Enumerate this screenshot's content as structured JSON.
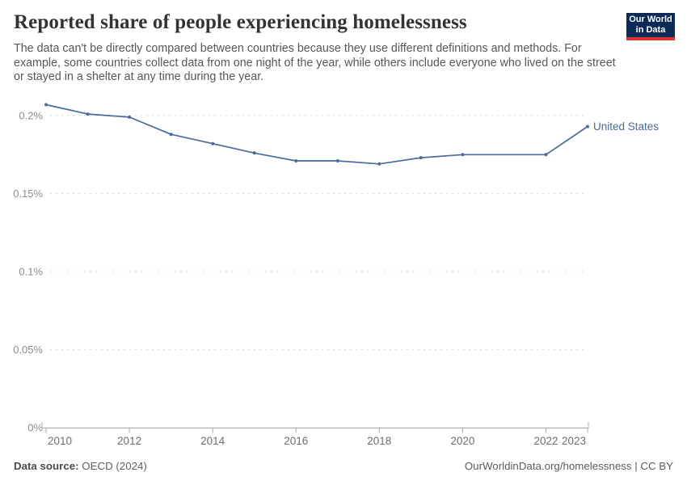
{
  "header": {
    "title": "Reported share of people experiencing homelessness",
    "subtitle": "The data can't be directly compared between countries because they use different definitions and methods. For example, some countries collect data from one night of the year, while others include everyone who lived on the street or stayed in a shelter at any time during the year.",
    "logo": {
      "line1": "Our World",
      "line2": "in Data",
      "bg_color": "#0b2b56",
      "accent_color": "#dc352f"
    }
  },
  "chart_data": {
    "type": "line",
    "title": "Reported share of people experiencing homelessness",
    "x_ticks": [
      "2010",
      "2012",
      "2014",
      "2016",
      "2018",
      "2020",
      "2022",
      "2023"
    ],
    "y_ticks": [
      {
        "value": 0,
        "label": "0%"
      },
      {
        "value": 0.05,
        "label": "0.05%"
      },
      {
        "value": 0.1,
        "label": "0.1%"
      },
      {
        "value": 0.15,
        "label": "0.15%"
      },
      {
        "value": 0.2,
        "label": "0.2%"
      }
    ],
    "x_range": [
      2010,
      2023
    ],
    "y_range_percent": [
      0,
      0.2
    ],
    "unit": "%",
    "grid": "dashed-horizontal",
    "legend_position": "end-of-line",
    "colors": {
      "axis": "#a8a8a8",
      "grid": "#d6d6d6",
      "y_tick_label": "#8c8c8c",
      "x_tick_label": "#6e6e6e"
    },
    "series": [
      {
        "name": "United States",
        "color": "#4c6a9c",
        "points": [
          {
            "year": 2010,
            "value": 0.207
          },
          {
            "year": 2011,
            "value": 0.201
          },
          {
            "year": 2012,
            "value": 0.199
          },
          {
            "year": 2013,
            "value": 0.188
          },
          {
            "year": 2014,
            "value": 0.182
          },
          {
            "year": 2015,
            "value": 0.176
          },
          {
            "year": 2016,
            "value": 0.171
          },
          {
            "year": 2017,
            "value": 0.171
          },
          {
            "year": 2018,
            "value": 0.169
          },
          {
            "year": 2019,
            "value": 0.173
          },
          {
            "year": 2020,
            "value": 0.175
          },
          {
            "year": 2022,
            "value": 0.175
          },
          {
            "year": 2023,
            "value": 0.193
          }
        ]
      }
    ]
  },
  "footer": {
    "source_label": "Data source:",
    "source_value": "OECD (2024)",
    "rights": "OurWorldinData.org/homelessness | CC BY"
  }
}
